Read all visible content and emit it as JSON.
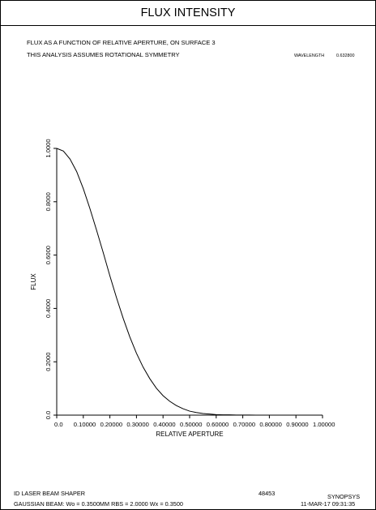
{
  "window": {
    "title": "FLUX INTENSITY"
  },
  "header": {
    "line1": "FLUX AS A FUNCTION OF RELATIVE APERTURE, ON SURFACE   3",
    "line2": "THIS ANALYSIS ASSUMES ROTATIONAL SYMMETRY",
    "wavelength_label": "WAVELENGTH",
    "wavelength_value": "0.632800"
  },
  "chart_data": {
    "type": "line",
    "xlabel": "RELATIVE APERTURE",
    "ylabel": "FLUX",
    "xlim": [
      0,
      1
    ],
    "ylim": [
      0,
      1
    ],
    "x_ticks": [
      "0.0",
      "0.10000",
      "0.20000",
      "0.30000",
      "0.40000",
      "0.50000",
      "0.60000",
      "0.70000",
      "0.80000",
      "0.90000",
      "1.00000"
    ],
    "y_ticks": [
      "0.0",
      "0.2000",
      "0.4000",
      "0.6000",
      "0.8000",
      "1.0000"
    ],
    "grid": false,
    "series": [
      {
        "x": [
          0,
          0.025,
          0.05,
          0.075,
          0.1,
          0.125,
          0.15,
          0.175,
          0.2,
          0.225,
          0.25,
          0.275,
          0.3,
          0.325,
          0.35,
          0.375,
          0.4,
          0.425,
          0.45,
          0.475,
          0.5,
          0.525,
          0.55,
          0.575,
          0.6,
          0.625,
          0.65,
          0.675,
          0.7,
          0.725,
          0.75,
          0.775,
          0.8,
          0.825,
          0.85,
          0.875,
          0.9,
          0.925,
          0.95,
          0.975,
          1.0
        ],
        "y": [
          1.0,
          0.99,
          0.96,
          0.913,
          0.849,
          0.774,
          0.693,
          0.609,
          0.522,
          0.44,
          0.363,
          0.293,
          0.232,
          0.18,
          0.137,
          0.101,
          0.073,
          0.052,
          0.036,
          0.024,
          0.015,
          0.01,
          0.006,
          0.004,
          0.002,
          0.001,
          0.001,
          0.0005,
          0.0003,
          0.0002,
          0.0001,
          0.0,
          0.0,
          0.0,
          0.0,
          0.0,
          0.0,
          0.0,
          0.0,
          0.0,
          0.0
        ]
      }
    ]
  },
  "footer": {
    "system_name": "ID LASER BEAM SHAPER",
    "gaussian_info": "GAUSSIAN BEAM: Wo =  0.3500MM   RBS =  2.0000 Wx =  0.3500",
    "job_number": "48453",
    "program": "SYNOPSYS",
    "timestamp": "11-MAR-17  09:31:35"
  }
}
